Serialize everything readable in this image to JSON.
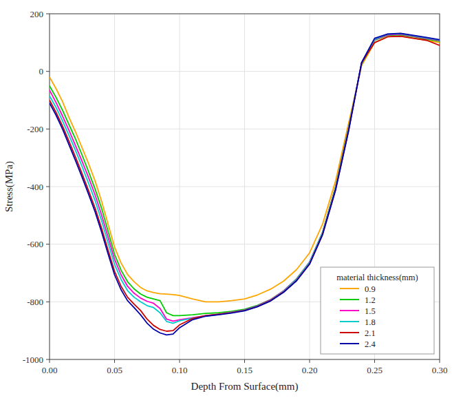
{
  "chart_data": {
    "type": "line",
    "xlabel": "Depth From Surface(mm)",
    "ylabel": "Stress(MPa)",
    "legend_title": "material thickness(mm)",
    "legend": "lower right",
    "grid": true,
    "xlim": [
      0,
      0.3
    ],
    "ylim": [
      -1000,
      200
    ],
    "xticks": [
      {
        "value": 0.0,
        "label": "0.00"
      },
      0.05,
      {
        "value": 0.1,
        "label": "0.10"
      },
      0.15,
      {
        "value": 0.2,
        "label": "0.20"
      },
      0.25,
      {
        "value": 0.3,
        "label": "0.30"
      }
    ],
    "yticks": [
      -1000,
      -800,
      -600,
      -400,
      -200,
      0,
      200
    ],
    "x": [
      0.0,
      0.005,
      0.01,
      0.015,
      0.02,
      0.025,
      0.03,
      0.035,
      0.04,
      0.045,
      0.05,
      0.055,
      0.06,
      0.065,
      0.07,
      0.075,
      0.08,
      0.085,
      0.09,
      0.095,
      0.1,
      0.11,
      0.12,
      0.13,
      0.14,
      0.15,
      0.16,
      0.17,
      0.18,
      0.19,
      0.2,
      0.21,
      0.22,
      0.23,
      0.24,
      0.25,
      0.26,
      0.27,
      0.28,
      0.29,
      0.3
    ],
    "series": [
      {
        "name": "0.9",
        "color": "#FFA500",
        "values": [
          -20,
          -60,
          -105,
          -160,
          -210,
          -265,
          -320,
          -380,
          -450,
          -530,
          -610,
          -665,
          -705,
          -730,
          -750,
          -762,
          -768,
          -772,
          -773,
          -775,
          -778,
          -790,
          -800,
          -800,
          -796,
          -790,
          -776,
          -756,
          -728,
          -688,
          -630,
          -530,
          -380,
          -180,
          20,
          100,
          120,
          122,
          115,
          108,
          100
        ]
      },
      {
        "name": "1.2",
        "color": "#00CC00",
        "values": [
          -50,
          -90,
          -135,
          -185,
          -235,
          -290,
          -348,
          -408,
          -475,
          -555,
          -635,
          -690,
          -730,
          -755,
          -773,
          -784,
          -790,
          -796,
          -838,
          -848,
          -848,
          -845,
          -840,
          -838,
          -833,
          -826,
          -812,
          -792,
          -762,
          -720,
          -662,
          -558,
          -400,
          -195,
          25,
          108,
          125,
          127,
          120,
          112,
          105
        ]
      },
      {
        "name": "1.5",
        "color": "#FF00CC",
        "values": [
          -65,
          -108,
          -155,
          -205,
          -258,
          -312,
          -368,
          -428,
          -498,
          -575,
          -652,
          -706,
          -746,
          -770,
          -787,
          -798,
          -805,
          -823,
          -860,
          -867,
          -862,
          -855,
          -848,
          -843,
          -836,
          -828,
          -814,
          -793,
          -762,
          -721,
          -662,
          -559,
          -403,
          -198,
          27,
          110,
          127,
          129,
          122,
          114,
          107
        ]
      },
      {
        "name": "1.8",
        "color": "#00CCCC",
        "values": [
          -85,
          -125,
          -172,
          -222,
          -275,
          -330,
          -388,
          -448,
          -518,
          -595,
          -670,
          -722,
          -761,
          -784,
          -800,
          -813,
          -820,
          -838,
          -868,
          -874,
          -866,
          -857,
          -849,
          -844,
          -837,
          -829,
          -815,
          -795,
          -764,
          -722,
          -663,
          -560,
          -405,
          -200,
          29,
          112,
          129,
          131,
          124,
          116,
          109
        ]
      },
      {
        "name": "2.1",
        "color": "#CC0000",
        "values": [
          -100,
          -142,
          -190,
          -243,
          -298,
          -355,
          -414,
          -474,
          -544,
          -620,
          -694,
          -746,
          -784,
          -808,
          -830,
          -860,
          -882,
          -896,
          -902,
          -900,
          -880,
          -858,
          -848,
          -843,
          -838,
          -830,
          -816,
          -796,
          -766,
          -726,
          -668,
          -565,
          -410,
          -205,
          30,
          100,
          120,
          122,
          115,
          108,
          90
        ]
      },
      {
        "name": "2.4",
        "color": "#0000AA",
        "values": [
          -110,
          -152,
          -200,
          -255,
          -310,
          -367,
          -426,
          -487,
          -557,
          -633,
          -706,
          -758,
          -796,
          -820,
          -845,
          -874,
          -895,
          -908,
          -915,
          -912,
          -890,
          -862,
          -850,
          -845,
          -839,
          -831,
          -817,
          -797,
          -767,
          -727,
          -669,
          -567,
          -412,
          -207,
          31,
          115,
          130,
          132,
          125,
          118,
          110
        ]
      }
    ]
  }
}
